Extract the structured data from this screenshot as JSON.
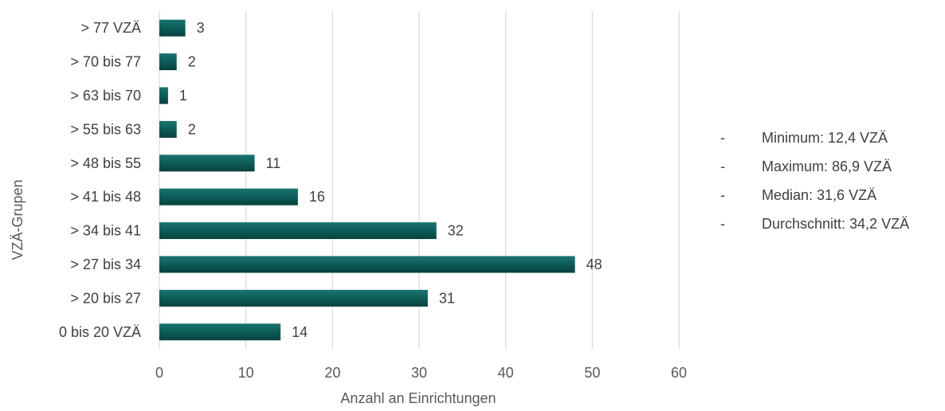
{
  "chart_data": {
    "type": "bar",
    "orientation": "horizontal",
    "categories": [
      "0 bis 20 VZÄ",
      "> 20 bis 27",
      "> 27 bis 34",
      "> 34 bis 41",
      "> 41 bis 48",
      "> 48 bis 55",
      "> 55 bis 63",
      "> 63 bis 70",
      "> 70 bis 77",
      "> 77 VZÄ"
    ],
    "values": [
      14,
      31,
      48,
      32,
      16,
      11,
      2,
      1,
      2,
      3
    ],
    "xlabel": "Anzahl an Einrichtungen",
    "ylabel": "VZÄ-Grupen",
    "xlim": [
      0,
      60
    ],
    "xticks": [
      0,
      10,
      20,
      30,
      40,
      50,
      60
    ],
    "grid": "vertical",
    "data_labels": true,
    "bar_color": "#0d5c58"
  },
  "stats": [
    {
      "dash": "-",
      "text": "Minimum: 12,4 VZÄ"
    },
    {
      "dash": "-",
      "text": "Maximum: 86,9 VZÄ"
    },
    {
      "dash": "-",
      "text": "Median: 31,6 VZÄ"
    },
    {
      "dash": "-",
      "text": "Durchschnitt: 34,2 VZÄ"
    }
  ]
}
